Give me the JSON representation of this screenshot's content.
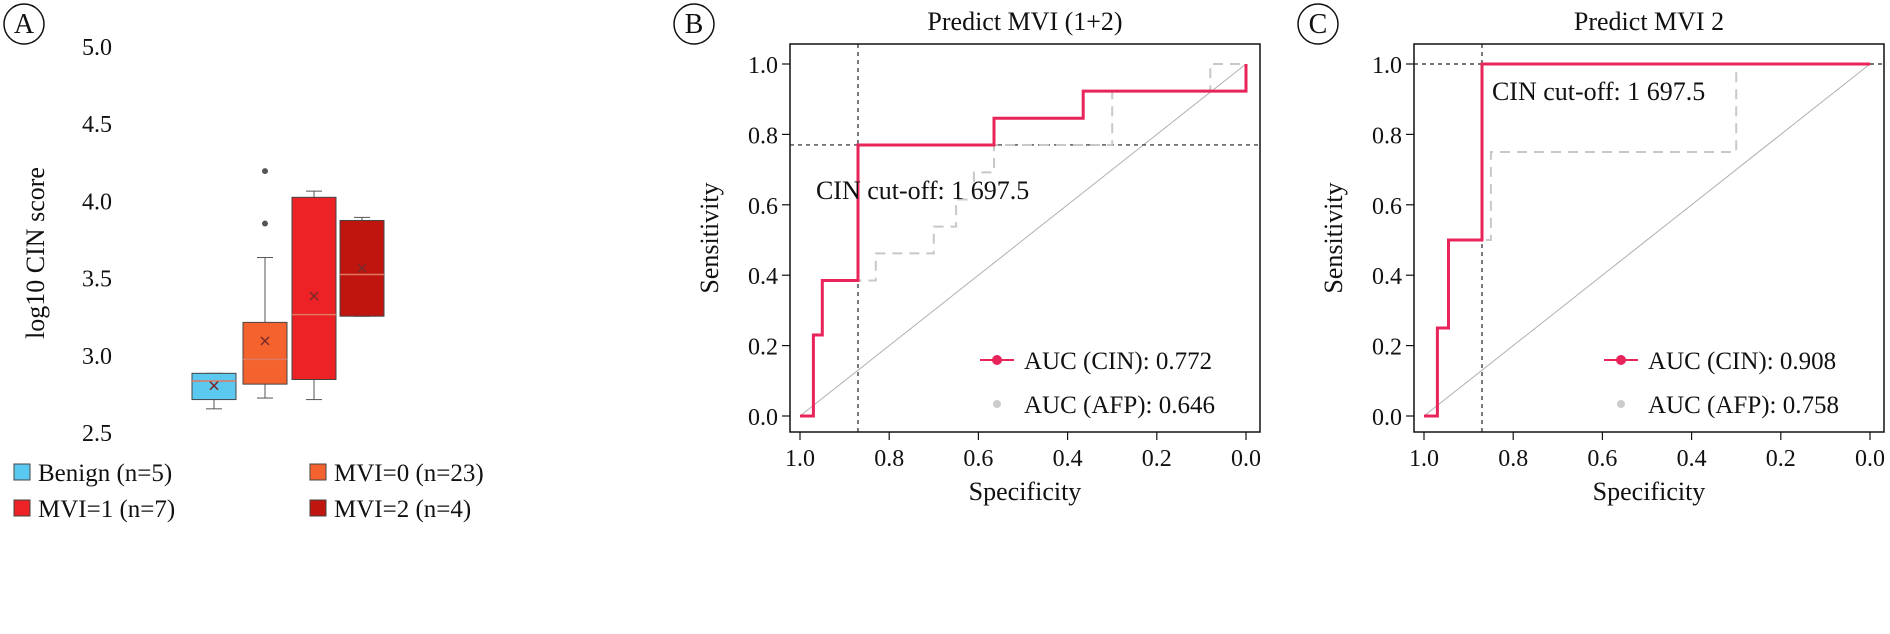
{
  "chart_data": [
    {
      "type": "box",
      "panel_label": "A",
      "ylabel": "log10 CIN score",
      "ylim": [
        2.5,
        5.0
      ],
      "yticks": [
        2.5,
        3.0,
        3.5,
        4.0,
        4.5,
        5.0
      ],
      "ytick_labels": [
        "2.5",
        "3.0",
        "3.5",
        "4.0",
        "4.5",
        "5.0"
      ],
      "legend_position": "bottom",
      "groups": [
        {
          "name": "Benign (n=5)",
          "color": "#5bc8f0",
          "min": 2.65,
          "q1": 2.71,
          "median": 2.83,
          "q3": 2.88,
          "max": 2.88,
          "mean": 2.8,
          "outliers": []
        },
        {
          "name": "MVI=0 (n=23)",
          "color": "#f4622e",
          "min": 2.72,
          "q1": 2.81,
          "median": 2.97,
          "q3": 3.21,
          "max": 3.63,
          "mean": 3.09,
          "outliers": [
            3.85,
            4.19
          ]
        },
        {
          "name": "MVI=1 (n=7)",
          "color": "#ec2226",
          "min": 2.71,
          "q1": 2.84,
          "median": 3.26,
          "q3": 4.02,
          "max": 4.06,
          "mean": 3.38,
          "outliers": []
        },
        {
          "name": "MVI=2 (n=4)",
          "color": "#c0140e",
          "min": 3.25,
          "q1": 3.25,
          "median": 3.52,
          "q3": 3.87,
          "max": 3.89,
          "mean": 3.56,
          "outliers": []
        }
      ]
    },
    {
      "type": "line",
      "panel_label": "B",
      "title": "Predict MVI (1+2)",
      "xlabel": "Specificity",
      "ylabel": "Sensitivity",
      "xlim": [
        1.0,
        0.0
      ],
      "ylim": [
        0.0,
        1.0
      ],
      "xticks": [
        1.0,
        0.8,
        0.6,
        0.4,
        0.2,
        0.0
      ],
      "xtick_labels": [
        "1.0",
        "0.8",
        "0.6",
        "0.4",
        "0.2",
        "0.0"
      ],
      "yticks": [
        0.0,
        0.2,
        0.4,
        0.6,
        0.8,
        1.0
      ],
      "ytick_labels": [
        "0.0",
        "0.2",
        "0.4",
        "0.6",
        "0.8",
        "1.0"
      ],
      "annotation": "CIN cut-off: 1 697.5",
      "cutoff_point": {
        "specificity": 0.87,
        "sensitivity": 0.77
      },
      "legend_position": "bottom-right",
      "series": [
        {
          "name": "AUC (CIN): 0.772",
          "color": "#e8245a",
          "style": "solid",
          "points": [
            [
              1.0,
              0.0
            ],
            [
              0.97,
              0.0
            ],
            [
              0.97,
              0.23
            ],
            [
              0.95,
              0.23
            ],
            [
              0.95,
              0.385
            ],
            [
              0.87,
              0.385
            ],
            [
              0.87,
              0.77
            ],
            [
              0.565,
              0.77
            ],
            [
              0.565,
              0.846
            ],
            [
              0.365,
              0.846
            ],
            [
              0.365,
              0.923
            ],
            [
              0.0,
              0.923
            ],
            [
              0.0,
              1.0
            ]
          ]
        },
        {
          "name": "AUC (AFP): 0.646",
          "color": "#c8c8c8",
          "style": "dashed",
          "points": [
            [
              1.0,
              0.0
            ],
            [
              0.97,
              0.0
            ],
            [
              0.97,
              0.23
            ],
            [
              0.95,
              0.23
            ],
            [
              0.95,
              0.385
            ],
            [
              0.83,
              0.385
            ],
            [
              0.83,
              0.462
            ],
            [
              0.7,
              0.462
            ],
            [
              0.7,
              0.538
            ],
            [
              0.65,
              0.538
            ],
            [
              0.65,
              0.615
            ],
            [
              0.61,
              0.615
            ],
            [
              0.61,
              0.692
            ],
            [
              0.565,
              0.692
            ],
            [
              0.565,
              0.77
            ],
            [
              0.3,
              0.77
            ],
            [
              0.3,
              0.923
            ],
            [
              0.08,
              0.923
            ],
            [
              0.08,
              1.0
            ],
            [
              0.0,
              1.0
            ]
          ]
        }
      ]
    },
    {
      "type": "line",
      "panel_label": "C",
      "title": "Predict MVI 2",
      "xlabel": "Specificity",
      "ylabel": "Sensitivity",
      "xlim": [
        1.0,
        0.0
      ],
      "ylim": [
        0.0,
        1.0
      ],
      "xticks": [
        1.0,
        0.8,
        0.6,
        0.4,
        0.2,
        0.0
      ],
      "xtick_labels": [
        "1.0",
        "0.8",
        "0.6",
        "0.4",
        "0.2",
        "0.0"
      ],
      "yticks": [
        0.0,
        0.2,
        0.4,
        0.6,
        0.8,
        1.0
      ],
      "ytick_labels": [
        "0.0",
        "0.2",
        "0.4",
        "0.6",
        "0.8",
        "1.0"
      ],
      "annotation": "CIN cut-off: 1 697.5",
      "cutoff_point": {
        "specificity": 0.87,
        "sensitivity": 1.0
      },
      "legend_position": "bottom-right",
      "series": [
        {
          "name": "AUC (CIN): 0.908",
          "color": "#e8245a",
          "style": "solid",
          "points": [
            [
              1.0,
              0.0
            ],
            [
              0.97,
              0.0
            ],
            [
              0.97,
              0.25
            ],
            [
              0.945,
              0.25
            ],
            [
              0.945,
              0.5
            ],
            [
              0.87,
              0.5
            ],
            [
              0.87,
              1.0
            ],
            [
              0.0,
              1.0
            ]
          ]
        },
        {
          "name": "AUC (AFP): 0.758",
          "color": "#c8c8c8",
          "style": "dashed",
          "points": [
            [
              1.0,
              0.0
            ],
            [
              0.97,
              0.0
            ],
            [
              0.97,
              0.25
            ],
            [
              0.945,
              0.25
            ],
            [
              0.945,
              0.5
            ],
            [
              0.85,
              0.5
            ],
            [
              0.85,
              0.75
            ],
            [
              0.3,
              0.75
            ],
            [
              0.3,
              1.0
            ],
            [
              0.0,
              1.0
            ]
          ]
        }
      ]
    }
  ]
}
